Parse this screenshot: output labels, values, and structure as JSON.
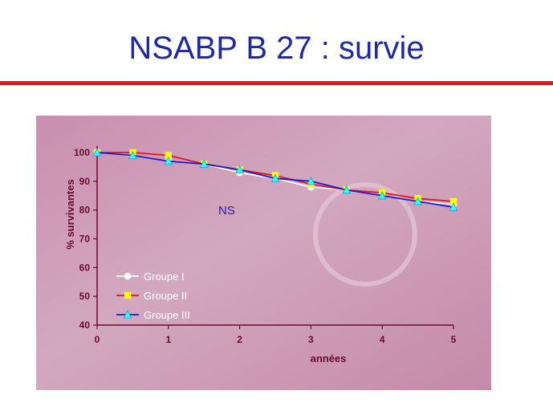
{
  "slide": {
    "title": "NSABP B 27 : survie"
  },
  "chart_data": {
    "type": "line",
    "title": "",
    "xlabel": "années",
    "ylabel": "% survivantes",
    "xlim": [
      0,
      5
    ],
    "ylim": [
      40,
      100
    ],
    "x_ticks": [
      "0",
      "1",
      "2",
      "3",
      "4",
      "5"
    ],
    "y_ticks": [
      "40",
      "50",
      "60",
      "70",
      "80",
      "90",
      "100"
    ],
    "x_tick_values": [
      0,
      1,
      2,
      3,
      4,
      5
    ],
    "y_tick_values": [
      40,
      50,
      60,
      70,
      80,
      90,
      100
    ],
    "grid": false,
    "legend_position": "bottom-left",
    "annotation": "NS",
    "colors": {
      "background": "#cc9ab3",
      "axis": "#6b0a2b",
      "line_groupe_1": "#ffffff",
      "line_groupe_2": "#e8141a",
      "line_groupe_3": "#1d1ad6",
      "marker_groupe_1": "#ffffff",
      "marker_groupe_2": "#ffff00",
      "marker_groupe_3": "#33ffff",
      "legend_text": "#ffffff",
      "annotation": "#2a1aa0"
    },
    "series": [
      {
        "name": "Groupe I",
        "marker": "circle",
        "x": [
          0,
          0.5,
          1,
          1.5,
          2,
          2.5,
          3,
          3.5,
          4,
          4.5,
          5
        ],
        "y": [
          100,
          99,
          97,
          96,
          93,
          91,
          88,
          87,
          85,
          83,
          82
        ]
      },
      {
        "name": "Groupe II",
        "marker": "square",
        "x": [
          0,
          0.5,
          1,
          1.5,
          2,
          2.5,
          3,
          3.5,
          4,
          4.5,
          5
        ],
        "y": [
          100,
          100,
          99,
          96,
          94,
          92,
          89,
          87,
          86,
          84,
          83
        ]
      },
      {
        "name": "Groupe III",
        "marker": "triangle",
        "x": [
          0,
          0.5,
          1,
          1.5,
          2,
          2.5,
          3,
          3.5,
          4,
          4.5,
          5
        ],
        "y": [
          100,
          99,
          97,
          96,
          94,
          91,
          90,
          87,
          85,
          83,
          81
        ]
      }
    ]
  }
}
